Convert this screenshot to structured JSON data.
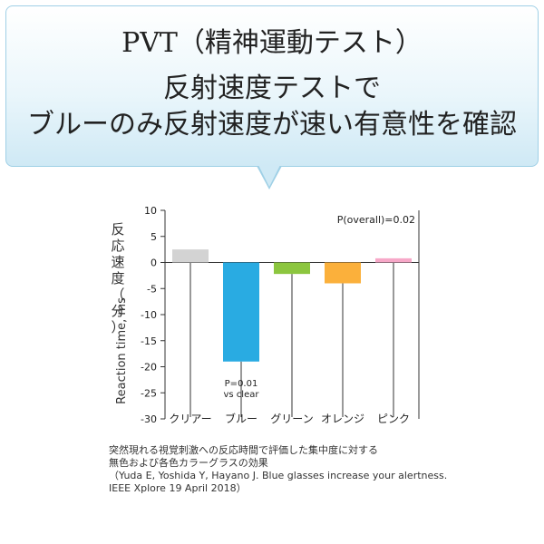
{
  "banner": {
    "lines": [
      "PVT（精神運動テスト）",
      "反射速度テストで",
      "ブルーのみ反射速度が速い有意性を確認"
    ]
  },
  "chart_data": {
    "type": "bar",
    "categories": [
      "クリアー",
      "ブルー",
      "グリーン",
      "オレンジ",
      "ピンク"
    ],
    "values": [
      2.5,
      -19,
      -2.2,
      -4,
      0.8
    ],
    "colors": [
      "#d3d3d3",
      "#29abe2",
      "#8cc63f",
      "#fbb03b",
      "#f7a8c8"
    ],
    "ylabel_ja": "反応速度（分）",
    "ylabel_en": "Reaction time, ms",
    "ylim": [
      -30,
      10
    ],
    "yticks": [
      10,
      5,
      0,
      -5,
      -10,
      -15,
      -20,
      -25,
      -30
    ],
    "annotations": {
      "overall": "P(overall)=0.02",
      "blue_p": "P=0.01",
      "blue_vs": "vs clear"
    }
  },
  "caption": {
    "lines": [
      "突然現れる視覚刺激への反応時間で評価した集中度に対する",
      "無色および各色カラーグラスの効果",
      "（Yuda E, Yoshida Y, Hayano J. Blue glasses increase your alertness.",
      " IEEE Xplore 19 April 2018）"
    ]
  }
}
